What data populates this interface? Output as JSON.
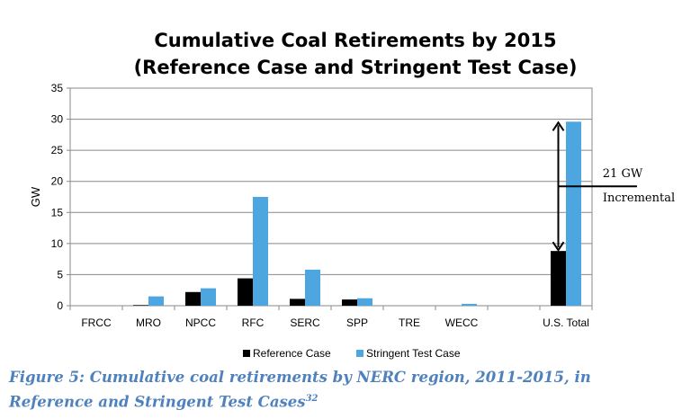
{
  "chart_data": {
    "type": "bar",
    "title": [
      "Cumulative Coal Retirements by 2015",
      "(Reference Case and Stringent Test Case)"
    ],
    "ylabel": "GW",
    "ylim": [
      0,
      35
    ],
    "yticks": [
      0,
      5,
      10,
      15,
      20,
      25,
      30,
      35
    ],
    "categories": [
      "FRCC",
      "MRO",
      "NPCC",
      "RFC",
      "SERC",
      "SPP",
      "TRE",
      "WECC",
      "",
      "U.S. Total"
    ],
    "series": [
      {
        "name": "Reference Case",
        "color": "#000000",
        "values": [
          0,
          0.1,
          2.2,
          4.4,
          1.1,
          1.0,
          0,
          0,
          null,
          8.8
        ]
      },
      {
        "name": "Stringent Test Case",
        "color": "#4da6e0",
        "values": [
          0,
          1.5,
          2.8,
          17.5,
          5.8,
          1.2,
          0,
          0.3,
          null,
          29.6
        ]
      }
    ],
    "annotation": {
      "lines": [
        "21 GW",
        "Incremental"
      ],
      "from": 8.8,
      "to": 29.6
    },
    "legend": "bottom",
    "grid": "horizontal"
  },
  "caption": {
    "text": "Figure 5: Cumulative coal retirements by NERC region, 2011-2015, in Reference and Stringent Test Cases",
    "footnote": "32"
  }
}
